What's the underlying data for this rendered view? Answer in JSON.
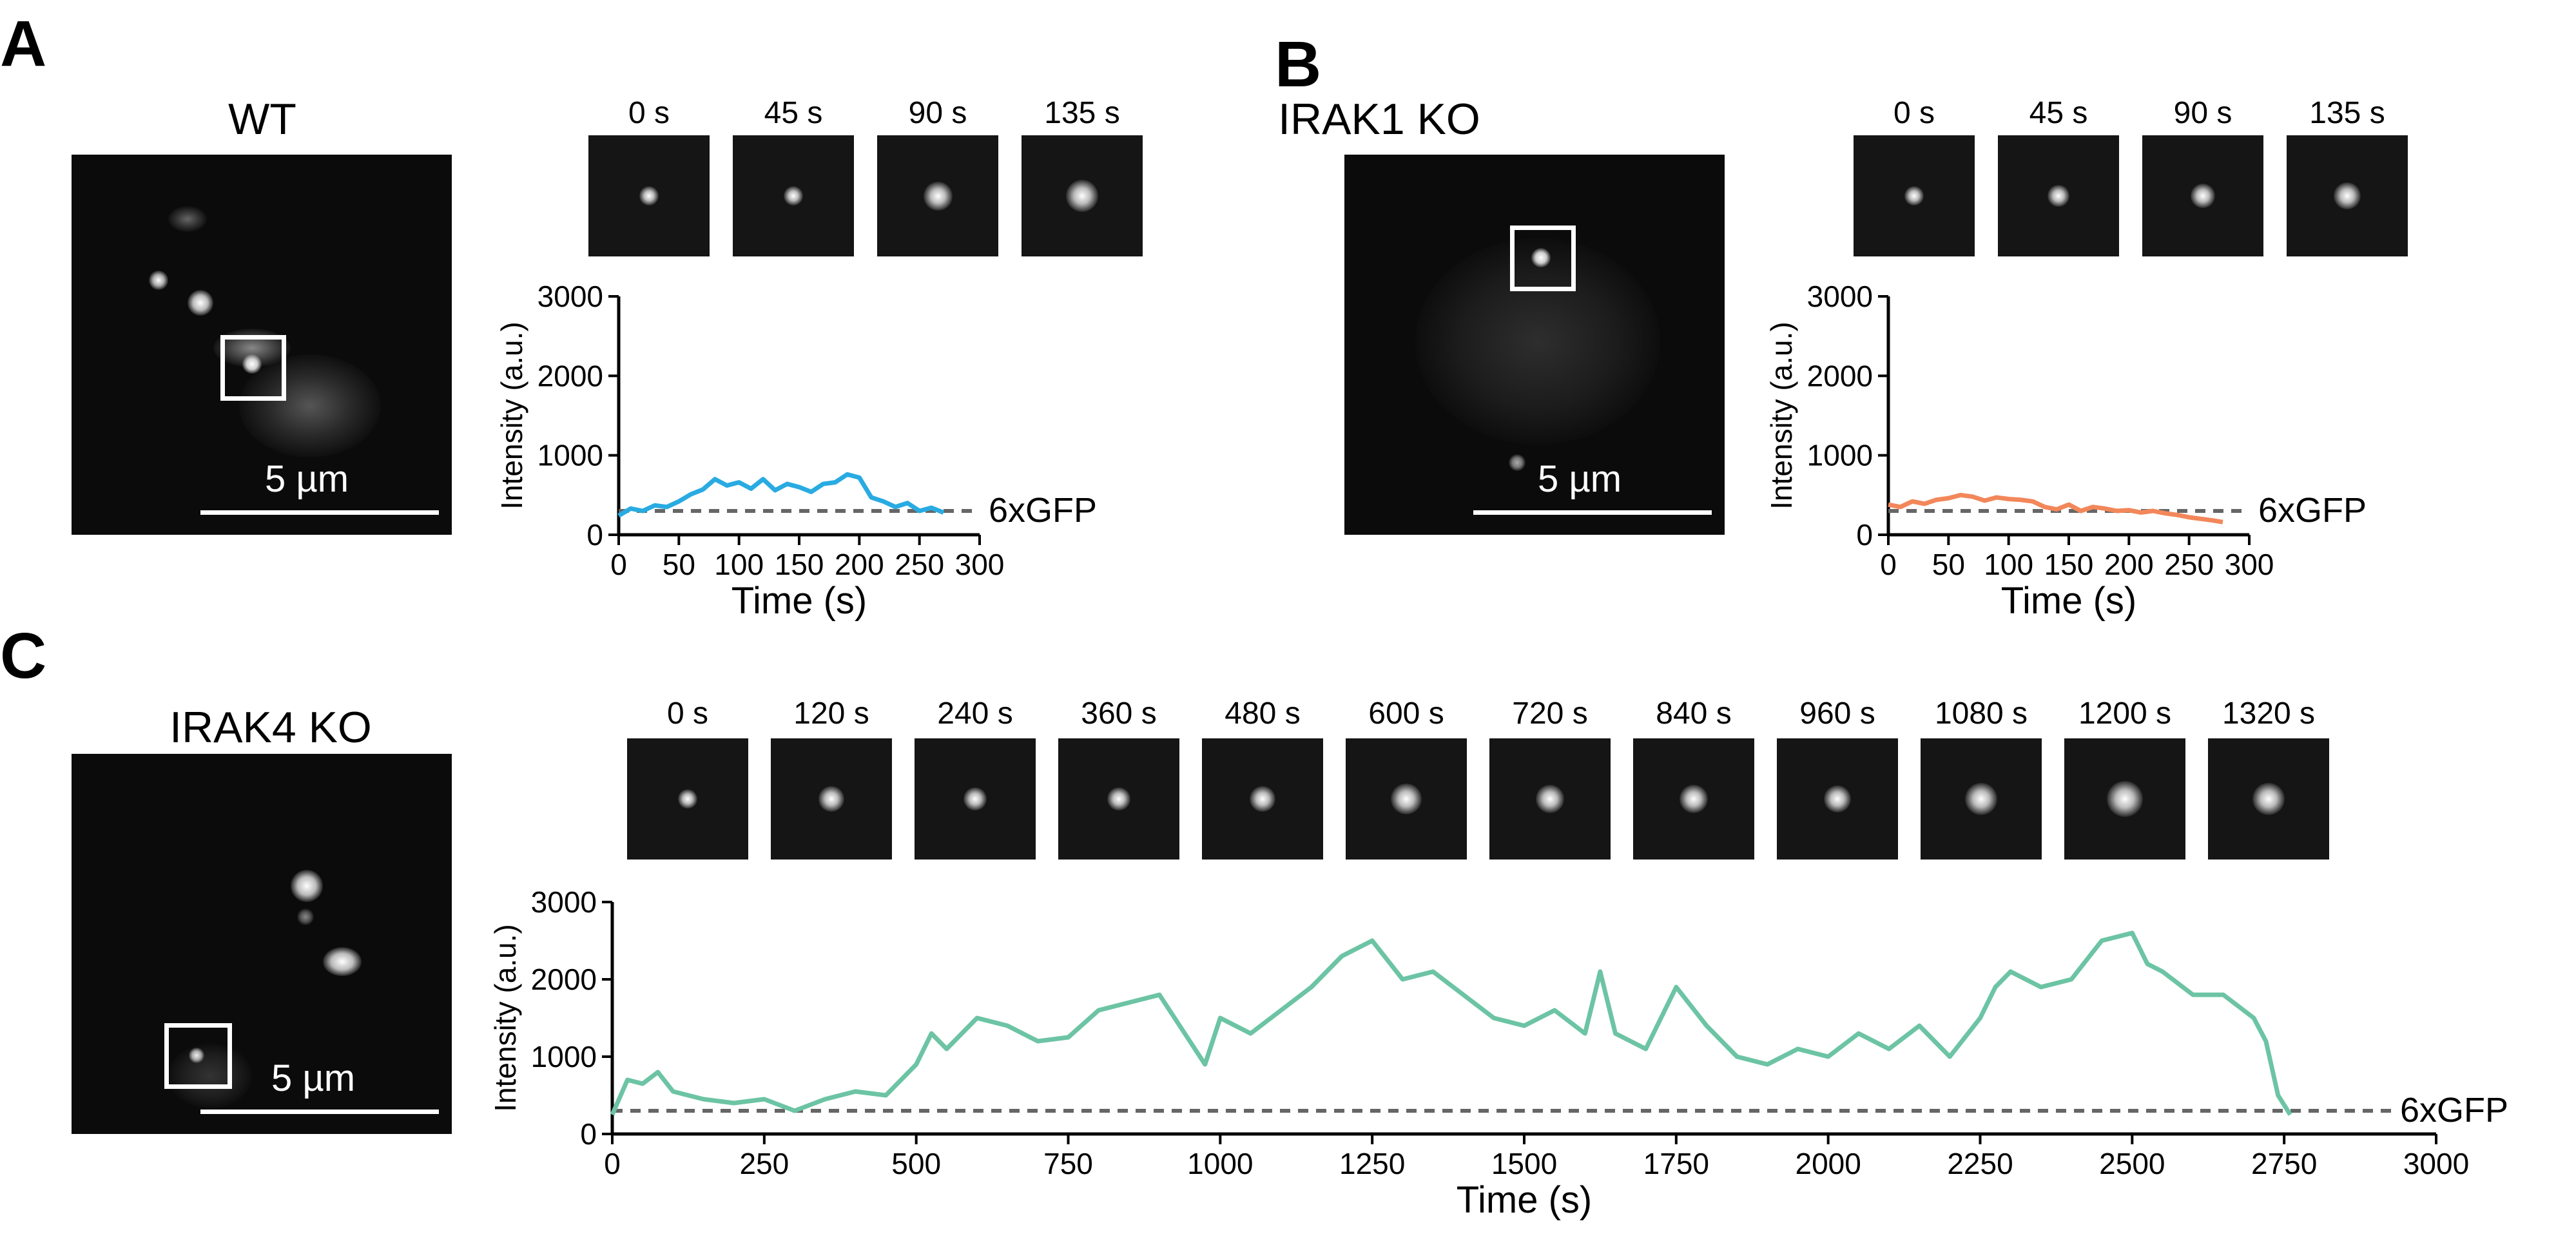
{
  "panels": [
    {
      "letter": "A",
      "condition": "WT",
      "scale_label": "5 µm",
      "frame_labels": [
        "0 s",
        "45 s",
        "90 s",
        "135 s"
      ]
    },
    {
      "letter": "B",
      "condition": "IRAK1 KO",
      "scale_label": "5 µm",
      "frame_labels": [
        "0 s",
        "45 s",
        "90 s",
        "135 s"
      ]
    },
    {
      "letter": "C",
      "condition": "IRAK4 KO",
      "scale_label": "5 µm",
      "frame_labels": [
        "0 s",
        "120 s",
        "240 s",
        "360 s",
        "480 s",
        "600 s",
        "720 s",
        "840 s",
        "960 s",
        "1080 s",
        "1200 s",
        "1320 s"
      ]
    }
  ],
  "chart_data": [
    {
      "type": "line",
      "panel": "A",
      "xlabel": "Time (s)",
      "ylabel": "Intensity (a.u.)",
      "xlim": [
        0,
        300
      ],
      "ylim": [
        0,
        3000
      ],
      "xticks": [
        0,
        50,
        100,
        150,
        200,
        250,
        300
      ],
      "yticks": [
        0,
        1000,
        2000,
        3000
      ],
      "reference_line": {
        "label": "6xGFP",
        "y": 300,
        "style": "dashed",
        "color": "#666666"
      },
      "series": [
        {
          "color": "#29abe2",
          "x": [
            0,
            10,
            20,
            30,
            40,
            50,
            60,
            70,
            80,
            90,
            100,
            110,
            120,
            130,
            140,
            150,
            160,
            170,
            180,
            190,
            200,
            210,
            220,
            230,
            240,
            250,
            260,
            270
          ],
          "y": [
            240,
            330,
            300,
            370,
            350,
            420,
            510,
            570,
            700,
            620,
            660,
            580,
            700,
            560,
            640,
            600,
            540,
            640,
            660,
            760,
            720,
            470,
            420,
            350,
            400,
            300,
            340,
            280
          ]
        }
      ]
    },
    {
      "type": "line",
      "panel": "B",
      "xlabel": "Time (s)",
      "ylabel": "Intensity (a.u.)",
      "xlim": [
        0,
        300
      ],
      "ylim": [
        0,
        3000
      ],
      "xticks": [
        0,
        50,
        100,
        150,
        200,
        250,
        300
      ],
      "yticks": [
        0,
        1000,
        2000,
        3000
      ],
      "reference_line": {
        "label": "6xGFP",
        "y": 300,
        "style": "dashed",
        "color": "#666666"
      },
      "series": [
        {
          "color": "#f2875a",
          "x": [
            0,
            10,
            20,
            30,
            40,
            50,
            60,
            70,
            80,
            90,
            100,
            110,
            120,
            130,
            140,
            150,
            160,
            170,
            180,
            190,
            200,
            210,
            220,
            230,
            240,
            250,
            260,
            270,
            278
          ],
          "y": [
            380,
            350,
            420,
            390,
            440,
            460,
            500,
            480,
            430,
            470,
            450,
            440,
            420,
            350,
            320,
            380,
            300,
            350,
            330,
            300,
            310,
            280,
            300,
            270,
            250,
            220,
            200,
            180,
            160
          ]
        }
      ]
    },
    {
      "type": "line",
      "panel": "C",
      "xlabel": "Time (s)",
      "ylabel": "Intensity (a.u.)",
      "xlim": [
        0,
        3000
      ],
      "ylim": [
        0,
        3000
      ],
      "xticks": [
        0,
        250,
        500,
        750,
        1000,
        1250,
        1500,
        1750,
        2000,
        2250,
        2500,
        2750,
        3000
      ],
      "yticks": [
        0,
        1000,
        2000,
        3000
      ],
      "reference_line": {
        "label": "6xGFP",
        "y": 300,
        "style": "dashed",
        "color": "#666666"
      },
      "series": [
        {
          "color": "#6cc4a4",
          "x": [
            0,
            25,
            50,
            75,
            100,
            150,
            200,
            250,
            300,
            350,
            400,
            450,
            500,
            525,
            550,
            600,
            650,
            700,
            750,
            800,
            850,
            900,
            950,
            975,
            1000,
            1050,
            1100,
            1150,
            1200,
            1250,
            1300,
            1350,
            1400,
            1450,
            1500,
            1550,
            1600,
            1625,
            1650,
            1700,
            1750,
            1800,
            1850,
            1900,
            1950,
            2000,
            2050,
            2100,
            2150,
            2200,
            2250,
            2275,
            2300,
            2350,
            2400,
            2450,
            2500,
            2525,
            2550,
            2600,
            2650,
            2700,
            2720,
            2740,
            2760
          ],
          "y": [
            250,
            700,
            650,
            800,
            550,
            450,
            400,
            450,
            300,
            450,
            550,
            500,
            900,
            1300,
            1100,
            1500,
            1400,
            1200,
            1250,
            1600,
            1700,
            1800,
            1200,
            900,
            1500,
            1300,
            1600,
            1900,
            2300,
            2500,
            2000,
            2100,
            1800,
            1500,
            1400,
            1600,
            1300,
            2100,
            1300,
            1100,
            1900,
            1400,
            1000,
            900,
            1100,
            1000,
            1300,
            1100,
            1400,
            1000,
            1500,
            1900,
            2100,
            1900,
            2000,
            2500,
            2600,
            2200,
            2100,
            1800,
            1800,
            1500,
            1200,
            500,
            250
          ]
        }
      ]
    }
  ]
}
